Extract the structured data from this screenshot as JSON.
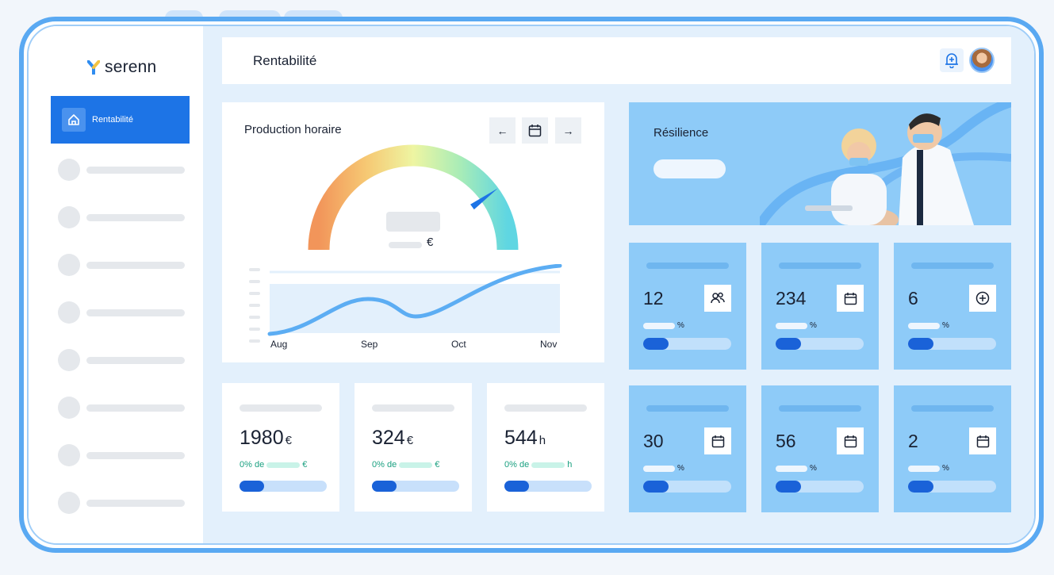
{
  "app": {
    "name": "serenn"
  },
  "sidebar": {
    "active_item": {
      "label": "Rentabilité",
      "icon": "home-icon"
    },
    "placeholder_rows": 8
  },
  "header": {
    "title": "Rentabilité",
    "bell_icon": "bell-icon"
  },
  "production": {
    "title": "Production horaire",
    "currency": "€",
    "controls": {
      "prev": "←",
      "calendar": "calendar-icon",
      "next": "→"
    },
    "gauge_level": 0.8,
    "months": [
      "Aug",
      "Sep",
      "Oct",
      "Nov"
    ]
  },
  "kpis": [
    {
      "value": "1980",
      "unit": "€",
      "sub_prefix": "0% de",
      "sub_unit": "€",
      "progress": 0.28
    },
    {
      "value": "324",
      "unit": "€",
      "sub_prefix": "0% de",
      "sub_unit": "€",
      "progress": 0.28
    },
    {
      "value": "544",
      "unit": "h",
      "sub_prefix": "0% de",
      "sub_unit": "h",
      "progress": 0.28
    }
  ],
  "resilience": {
    "title": "Résilience"
  },
  "stats": [
    {
      "value": "12",
      "icon": "users-icon",
      "pct": "%"
    },
    {
      "value": "234",
      "icon": "calendar-icon",
      "pct": "%"
    },
    {
      "value": "6",
      "icon": "plus-circle-icon",
      "pct": "%"
    },
    {
      "value": "30",
      "icon": "calendar-icon",
      "pct": "%"
    },
    {
      "value": "56",
      "icon": "calendar-icon",
      "pct": "%"
    },
    {
      "value": "2",
      "icon": "calendar-icon",
      "pct": "%"
    }
  ],
  "colors": {
    "accent": "#1d74e6",
    "card_blue": "#8ecbf8",
    "frame": "#5aa9f2",
    "success": "#1aa080"
  }
}
